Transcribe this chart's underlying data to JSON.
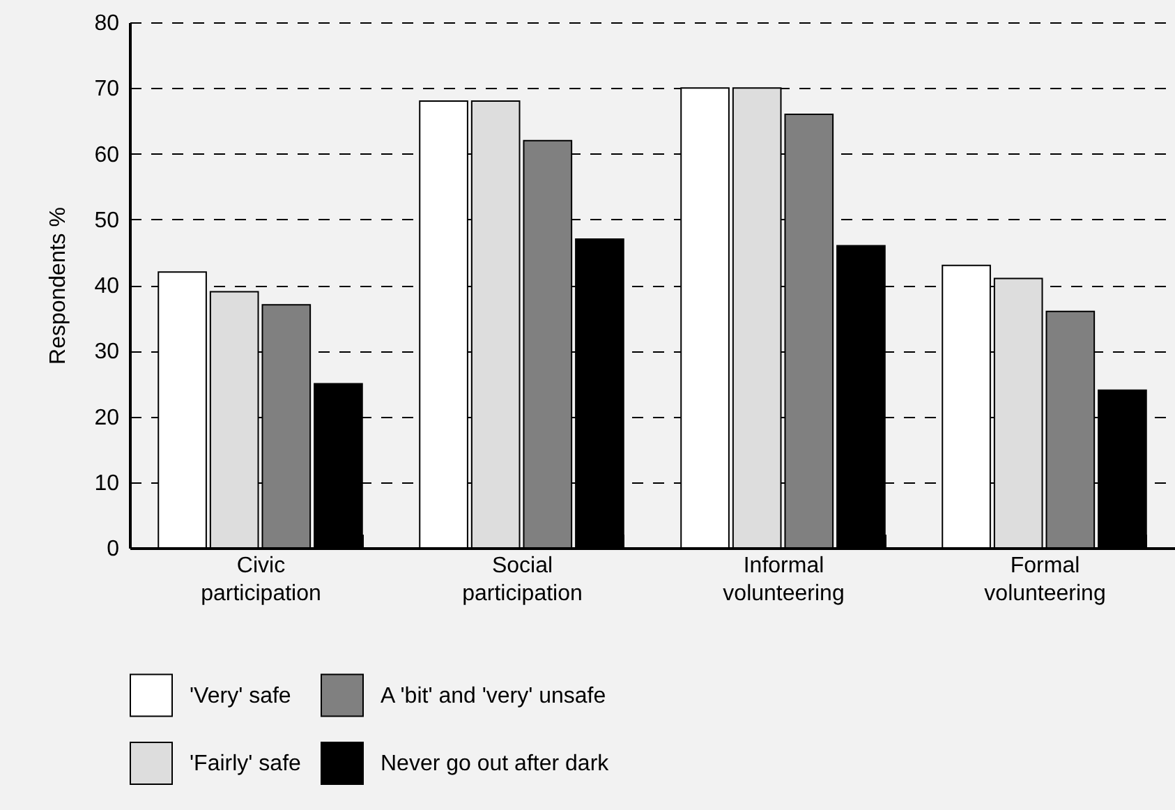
{
  "chart_data": {
    "type": "bar",
    "ylabel": "Respondents %",
    "categories": [
      "Civic participation",
      "Social participation",
      "Informal volunteering",
      "Formal volunteering"
    ],
    "series": [
      {
        "name": "'Very' safe",
        "color": "#ffffff",
        "values": [
          42,
          68,
          70,
          43
        ]
      },
      {
        "name": "'Fairly' safe",
        "color": "#dddddd",
        "values": [
          39,
          68,
          70,
          41
        ]
      },
      {
        "name": "A 'bit' and 'very' unsafe",
        "color": "#808080",
        "values": [
          37,
          62,
          66,
          36
        ]
      },
      {
        "name": "Never go out after dark",
        "color": "#000000",
        "values": [
          25,
          47,
          46,
          24
        ]
      }
    ],
    "ylim": [
      0,
      80
    ],
    "yticks": [
      0,
      10,
      20,
      30,
      40,
      50,
      60,
      70,
      80
    ],
    "grid": "y",
    "legend": "bottom"
  }
}
